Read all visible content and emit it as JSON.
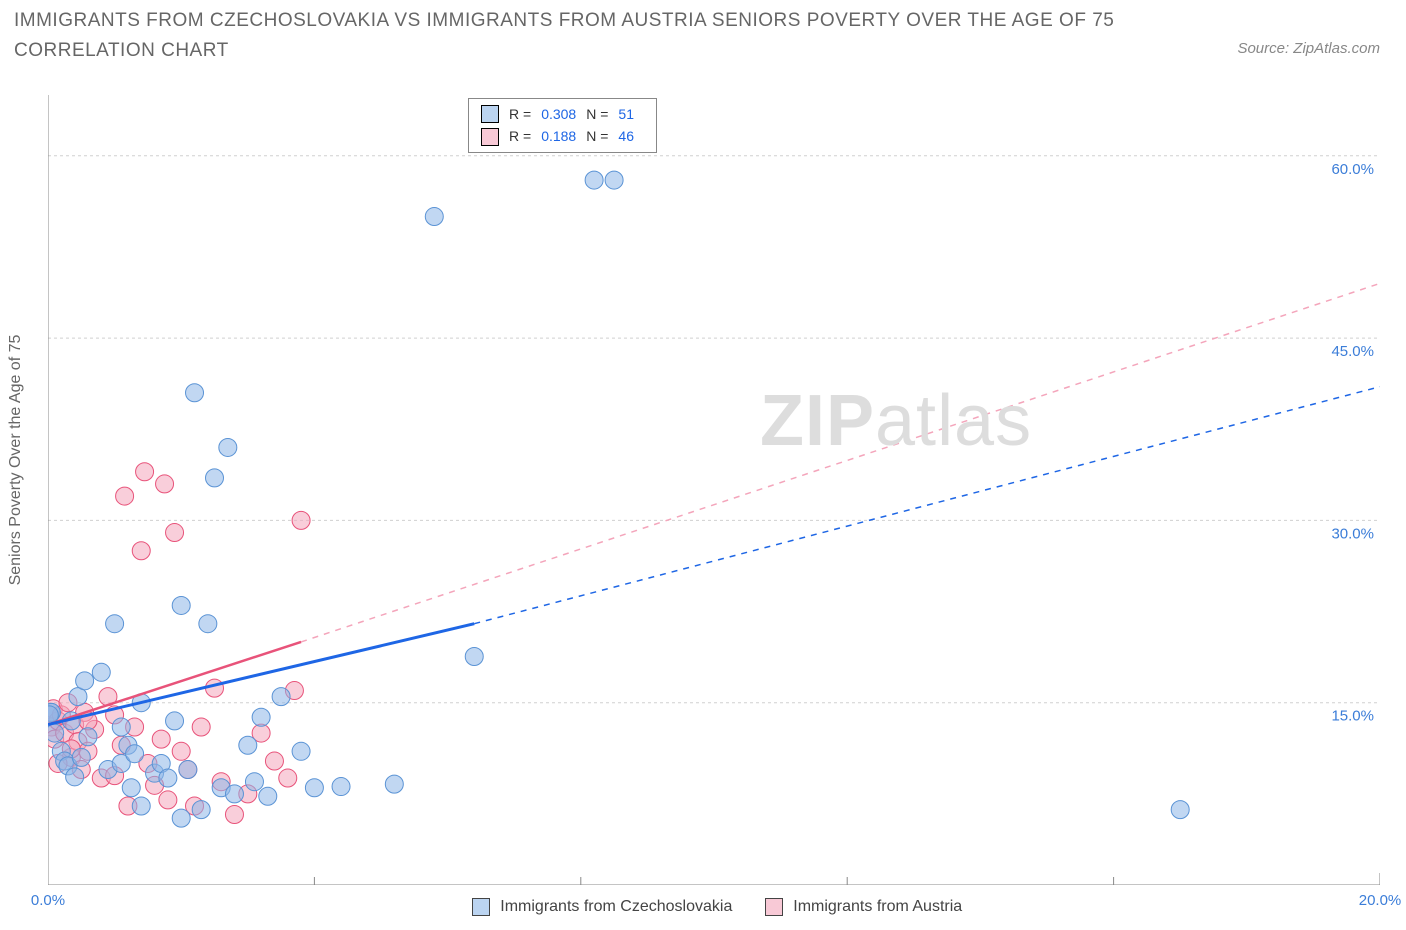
{
  "title": "IMMIGRANTS FROM CZECHOSLOVAKIA VS IMMIGRANTS FROM AUSTRIA SENIORS POVERTY OVER THE AGE OF 75 CORRELATION CHART",
  "source_label": "Source: ZipAtlas.com",
  "y_axis_label": "Seniors Poverty Over the Age of 75",
  "watermark": {
    "bold": "ZIP",
    "rest": "atlas"
  },
  "chart": {
    "type": "scatter",
    "xlim": [
      0,
      20
    ],
    "ylim": [
      0,
      65
    ],
    "x_ticks": [
      0,
      20
    ],
    "x_tick_labels": [
      "0.0%",
      "20.0%"
    ],
    "y_ticks": [
      15,
      30,
      45,
      60
    ],
    "y_tick_labels": [
      "15.0%",
      "30.0%",
      "45.0%",
      "60.0%"
    ],
    "background_color": "#ffffff",
    "grid_color": "#d0d0d0",
    "axis_color": "#888888",
    "marker_radius": 9,
    "series": [
      {
        "name": "Immigrants from Czechoslovakia",
        "color_fill": "rgba(142,183,232,0.55)",
        "color_stroke": "#5a93d5",
        "trend_color": "#1e66e5",
        "R": "0.308",
        "N": "51",
        "points": [
          [
            0.05,
            14.2
          ],
          [
            0.05,
            14.2
          ],
          [
            0.1,
            12.5
          ],
          [
            0.2,
            11.0
          ],
          [
            0.25,
            10.2
          ],
          [
            0.3,
            9.8
          ],
          [
            0.35,
            13.5
          ],
          [
            0.4,
            8.9
          ],
          [
            0.45,
            15.5
          ],
          [
            0.5,
            10.5
          ],
          [
            0.55,
            16.8
          ],
          [
            0.6,
            12.2
          ],
          [
            0.8,
            17.5
          ],
          [
            0.9,
            9.5
          ],
          [
            1.0,
            21.5
          ],
          [
            1.1,
            10.0
          ],
          [
            1.1,
            13.0
          ],
          [
            1.2,
            11.5
          ],
          [
            1.25,
            8.0
          ],
          [
            1.3,
            10.8
          ],
          [
            1.4,
            15.0
          ],
          [
            1.4,
            6.5
          ],
          [
            1.6,
            9.2
          ],
          [
            1.7,
            10.0
          ],
          [
            1.8,
            8.8
          ],
          [
            1.9,
            13.5
          ],
          [
            2.0,
            5.5
          ],
          [
            2.0,
            23.0
          ],
          [
            2.1,
            9.5
          ],
          [
            2.2,
            40.5
          ],
          [
            2.3,
            6.2
          ],
          [
            2.4,
            21.5
          ],
          [
            2.5,
            33.5
          ],
          [
            2.6,
            8.0
          ],
          [
            2.7,
            36.0
          ],
          [
            2.8,
            7.5
          ],
          [
            3.0,
            11.5
          ],
          [
            3.1,
            8.5
          ],
          [
            3.2,
            13.8
          ],
          [
            3.3,
            7.3
          ],
          [
            3.5,
            15.5
          ],
          [
            3.8,
            11.0
          ],
          [
            4.0,
            8.0
          ],
          [
            4.4,
            8.1
          ],
          [
            5.2,
            8.3
          ],
          [
            5.8,
            55.0
          ],
          [
            6.4,
            18.8
          ],
          [
            8.2,
            58.0
          ],
          [
            8.5,
            58.0
          ],
          [
            17.0,
            6.2
          ],
          [
            0.02,
            14.0
          ]
        ],
        "trend_solid": [
          [
            0,
            13.2
          ],
          [
            6.4,
            21.5
          ]
        ],
        "trend_dash": [
          [
            6.4,
            21.5
          ],
          [
            20,
            41.0
          ]
        ]
      },
      {
        "name": "Immigrants from Austria",
        "color_fill": "rgba(244,165,187,0.55)",
        "color_stroke": "#e8537a",
        "trend_color": "#e8537a",
        "R": "0.188",
        "N": "46",
        "points": [
          [
            0.05,
            13.0
          ],
          [
            0.08,
            14.5
          ],
          [
            0.1,
            12.0
          ],
          [
            0.15,
            13.5
          ],
          [
            0.2,
            14.0
          ],
          [
            0.25,
            12.5
          ],
          [
            0.3,
            15.0
          ],
          [
            0.35,
            10.5
          ],
          [
            0.4,
            13.2
          ],
          [
            0.45,
            11.8
          ],
          [
            0.5,
            9.5
          ],
          [
            0.55,
            14.2
          ],
          [
            0.6,
            11.0
          ],
          [
            0.7,
            12.8
          ],
          [
            0.8,
            8.8
          ],
          [
            0.9,
            15.5
          ],
          [
            1.0,
            9.0
          ],
          [
            1.1,
            11.5
          ],
          [
            1.15,
            32.0
          ],
          [
            1.2,
            6.5
          ],
          [
            1.3,
            13.0
          ],
          [
            1.4,
            27.5
          ],
          [
            1.45,
            34.0
          ],
          [
            1.5,
            10.0
          ],
          [
            1.6,
            8.2
          ],
          [
            1.7,
            12.0
          ],
          [
            1.75,
            33.0
          ],
          [
            1.8,
            7.0
          ],
          [
            1.9,
            29.0
          ],
          [
            2.0,
            11.0
          ],
          [
            2.1,
            9.5
          ],
          [
            2.2,
            6.5
          ],
          [
            2.3,
            13.0
          ],
          [
            2.5,
            16.2
          ],
          [
            2.6,
            8.5
          ],
          [
            2.8,
            5.8
          ],
          [
            3.0,
            7.5
          ],
          [
            3.2,
            12.5
          ],
          [
            3.4,
            10.2
          ],
          [
            3.6,
            8.8
          ],
          [
            3.7,
            16.0
          ],
          [
            3.8,
            30.0
          ],
          [
            1.0,
            14.0
          ],
          [
            0.6,
            13.5
          ],
          [
            0.35,
            11.2
          ],
          [
            0.15,
            10.0
          ]
        ],
        "trend_solid": [
          [
            0,
            13.2
          ],
          [
            3.8,
            20.0
          ]
        ],
        "trend_dash": [
          [
            3.8,
            20.0
          ],
          [
            20,
            49.5
          ]
        ]
      }
    ]
  },
  "legend_labels": {
    "r": "R =",
    "n": "N ="
  }
}
